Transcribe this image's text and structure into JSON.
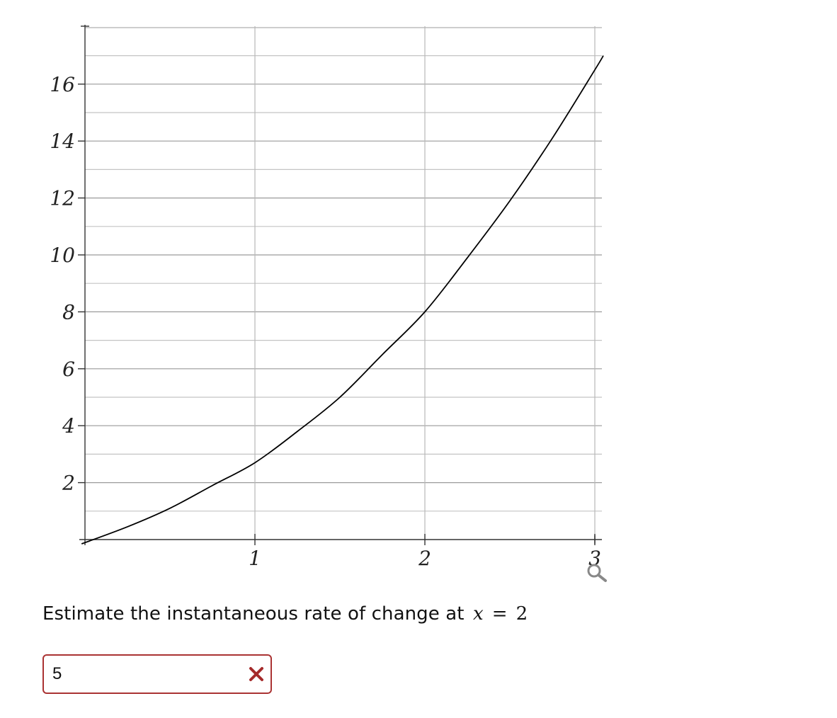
{
  "graph": {
    "zoom_icon": "magnifier-icon"
  },
  "chart_data": {
    "type": "line",
    "xlim": [
      0,
      3
    ],
    "ylim": [
      0,
      18
    ],
    "x_ticks": [
      1,
      2,
      3
    ],
    "y_ticks": [
      2,
      4,
      6,
      8,
      10,
      12,
      14,
      16
    ],
    "x_tick_labels": [
      "1",
      "2",
      "3"
    ],
    "y_tick_labels": [
      "2",
      "4",
      "6",
      "8",
      "10",
      "12",
      "14",
      "16"
    ],
    "grid": true,
    "series": [
      {
        "x": [
          0,
          0.25,
          0.5,
          0.75,
          1,
          1.25,
          1.5,
          1.75,
          2,
          2.25,
          2.5,
          2.75,
          3,
          3.05
        ],
        "y": [
          0,
          0.45,
          1.1,
          1.9,
          2.7,
          3.8,
          5.0,
          6.5,
          8.0,
          9.9,
          11.9,
          14.1,
          16.5,
          17.0
        ]
      }
    ]
  },
  "question": {
    "prefix": "Estimate the instantaneous rate of change at",
    "variable": "x",
    "operator": "=",
    "value": "2"
  },
  "answer": {
    "value": "5",
    "status_icon": "x-mark-icon",
    "status_color": "#a52a2a"
  }
}
